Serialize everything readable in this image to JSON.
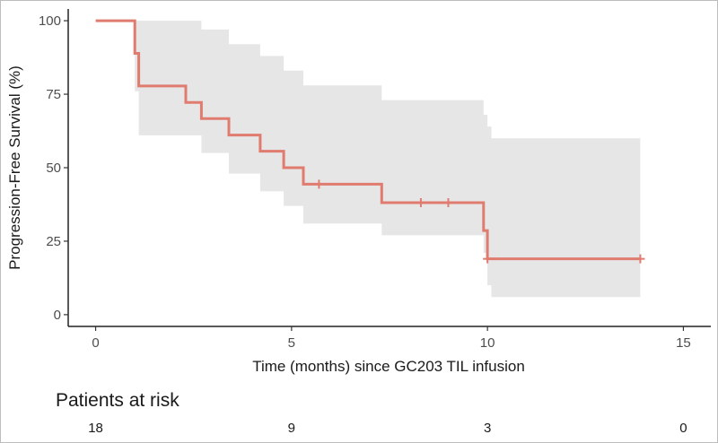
{
  "chart_data": {
    "type": "line",
    "subtype": "kaplan-meier",
    "xlabel": "Time (months) since GC203 TIL infusion",
    "ylabel": "Progression-Free Survival (%)",
    "xlim": [
      -0.7,
      15.7
    ],
    "ylim": [
      -4,
      104
    ],
    "x_ticks": [
      0,
      5,
      10,
      15
    ],
    "y_ticks": [
      0,
      25,
      50,
      75,
      100
    ],
    "color": "#E07B6F",
    "ci_color": "#E6E6E6",
    "survival_steps": [
      {
        "x": 0,
        "y": 100
      },
      {
        "x": 1.0,
        "y": 88.9
      },
      {
        "x": 1.1,
        "y": 77.8
      },
      {
        "x": 2.3,
        "y": 72.2
      },
      {
        "x": 2.7,
        "y": 66.7
      },
      {
        "x": 3.4,
        "y": 61.1
      },
      {
        "x": 4.2,
        "y": 55.6
      },
      {
        "x": 4.8,
        "y": 50.0
      },
      {
        "x": 5.3,
        "y": 44.4
      },
      {
        "x": 7.3,
        "y": 38.1
      },
      {
        "x": 9.9,
        "y": 28.6
      },
      {
        "x": 10.0,
        "y": 19.0
      }
    ],
    "end_x": 13.9,
    "censor_times": [
      5.7,
      8.3,
      9.0,
      10.0,
      13.9
    ],
    "ci_steps": [
      {
        "x": 0,
        "lower": 100,
        "upper": 100
      },
      {
        "x": 1.0,
        "lower": 76,
        "upper": 100
      },
      {
        "x": 1.1,
        "lower": 61,
        "upper": 100
      },
      {
        "x": 2.3,
        "lower": 61,
        "upper": 100
      },
      {
        "x": 2.7,
        "lower": 55,
        "upper": 97
      },
      {
        "x": 3.4,
        "lower": 48,
        "upper": 92
      },
      {
        "x": 4.2,
        "lower": 42,
        "upper": 88
      },
      {
        "x": 4.8,
        "lower": 37,
        "upper": 83
      },
      {
        "x": 5.3,
        "lower": 31,
        "upper": 78
      },
      {
        "x": 7.3,
        "lower": 27,
        "upper": 73
      },
      {
        "x": 9.9,
        "lower": 21,
        "upper": 68
      },
      {
        "x": 10.0,
        "lower": 10,
        "upper": 64
      },
      {
        "x": 10.1,
        "lower": 6,
        "upper": 60
      }
    ],
    "ci_end_x": 13.9
  },
  "risk_table": {
    "title": "Patients at risk",
    "times": [
      0,
      5,
      10,
      15
    ],
    "counts": [
      "18",
      "9",
      "3",
      "0"
    ]
  }
}
